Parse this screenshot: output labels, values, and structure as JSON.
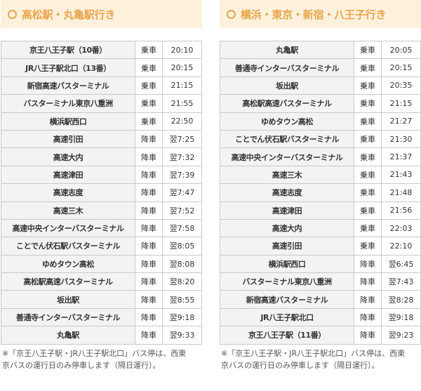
{
  "left": {
    "title": "高松駅・丸亀駅行き",
    "rows": [
      {
        "stop": "京王八王子駅（10番）",
        "type": "乗車",
        "time": "20:10"
      },
      {
        "stop": "JR八王子駅北口（13番）",
        "type": "乗車",
        "time": "20:15"
      },
      {
        "stop": "新宿高速バスターミナル",
        "type": "乗車",
        "time": "21:15"
      },
      {
        "stop": "バスターミナル東京八重洲",
        "type": "乗車",
        "time": "21:55"
      },
      {
        "stop": "横浜駅西口",
        "type": "乗車",
        "time": "22:50"
      },
      {
        "stop": "高速引田",
        "type": "降車",
        "time": "翌7:25"
      },
      {
        "stop": "高速大内",
        "type": "降車",
        "time": "翌7:32"
      },
      {
        "stop": "高速津田",
        "type": "降車",
        "time": "翌7:39"
      },
      {
        "stop": "高速志度",
        "type": "降車",
        "time": "翌7:47"
      },
      {
        "stop": "高速三木",
        "type": "降車",
        "time": "翌7:52"
      },
      {
        "stop": "高速中央インターバスターミナル",
        "type": "降車",
        "time": "翌7:58"
      },
      {
        "stop": "ことでん伏石駅バスターミナル",
        "type": "降車",
        "time": "翌8:05"
      },
      {
        "stop": "ゆめタウン高松",
        "type": "降車",
        "time": "翌8:08"
      },
      {
        "stop": "高松駅高速バスターミナル",
        "type": "降車",
        "time": "翌8:20"
      },
      {
        "stop": "坂出駅",
        "type": "降車",
        "time": "翌8:55"
      },
      {
        "stop": "善通寺インターバスターミナル",
        "type": "降車",
        "time": "翌9:18"
      },
      {
        "stop": "丸亀駅",
        "type": "降車",
        "time": "翌9:33"
      }
    ],
    "note": "※「京王八王子駅・JR八王子駅北口」バス停は、西東京バスの運行日のみ停車します（隔日運行）。"
  },
  "right": {
    "title": "横浜・東京・新宿・八王子行き",
    "rows": [
      {
        "stop": "丸亀駅",
        "type": "乗車",
        "time": "20:05"
      },
      {
        "stop": "善通寺インターバスターミナル",
        "type": "乗車",
        "time": "20:15"
      },
      {
        "stop": "坂出駅",
        "type": "乗車",
        "time": "20:35"
      },
      {
        "stop": "高松駅高速バスターミナル",
        "type": "乗車",
        "time": "21:15"
      },
      {
        "stop": "ゆめタウン高松",
        "type": "乗車",
        "time": "21:27"
      },
      {
        "stop": "ことでん伏石駅バスターミナル",
        "type": "乗車",
        "time": "21:30"
      },
      {
        "stop": "高速中央インターバスターミナル",
        "type": "乗車",
        "time": "21:37"
      },
      {
        "stop": "高速三木",
        "type": "乗車",
        "time": "21:43"
      },
      {
        "stop": "高速志度",
        "type": "乗車",
        "time": "21:48"
      },
      {
        "stop": "高速津田",
        "type": "乗車",
        "time": "21:56"
      },
      {
        "stop": "高速大内",
        "type": "乗車",
        "time": "22:03"
      },
      {
        "stop": "高速引田",
        "type": "乗車",
        "time": "22:10"
      },
      {
        "stop": "横浜駅西口",
        "type": "降車",
        "time": "翌6:45"
      },
      {
        "stop": "バスターミナル東京八重洲",
        "type": "降車",
        "time": "翌7:43"
      },
      {
        "stop": "新宿高速バスターミナル",
        "type": "降車",
        "time": "翌8:28"
      },
      {
        "stop": "JR八王子駅北口",
        "type": "降車",
        "time": "翌9:18"
      },
      {
        "stop": "京王八王子駅（11番）",
        "type": "降車",
        "time": "翌9:23"
      }
    ],
    "note": "※「京王八王子駅・JR八王子駅北口」バス停は、西東京バスの運行日のみ停車します（隔日運行）。"
  }
}
